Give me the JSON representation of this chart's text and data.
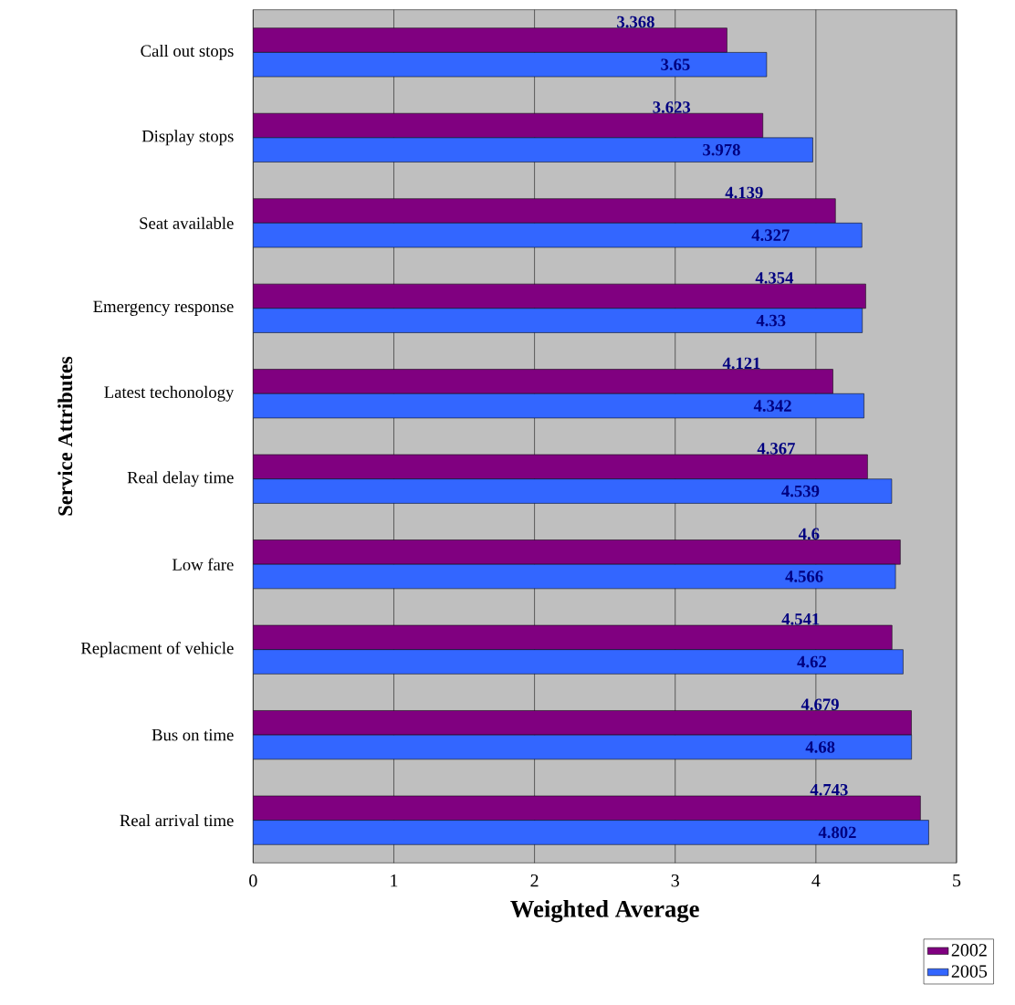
{
  "chart_data": {
    "type": "bar",
    "orientation": "horizontal",
    "xlabel": "Weighted Average",
    "ylabel": "Service Attributes",
    "categories": [
      "Call out stops",
      "Display stops",
      "Seat available",
      "Emergency response",
      "Latest techonology",
      "Real delay time",
      "Low fare",
      "Replacment of vehicle",
      "Bus on time",
      "Real arrival time"
    ],
    "series": [
      {
        "name": "2002",
        "color": "#800080",
        "values": [
          3.368,
          3.623,
          4.139,
          4.354,
          4.121,
          4.367,
          4.6,
          4.541,
          4.679,
          4.743
        ]
      },
      {
        "name": "2005",
        "color": "#3366ff",
        "values": [
          3.65,
          3.978,
          4.327,
          4.33,
          4.342,
          4.539,
          4.566,
          4.62,
          4.68,
          4.802
        ]
      }
    ],
    "xlim": [
      0,
      5
    ],
    "xticks": [
      0,
      1,
      2,
      3,
      4,
      5
    ],
    "grid": "x",
    "legend": "bottom right",
    "data_labels": true
  }
}
